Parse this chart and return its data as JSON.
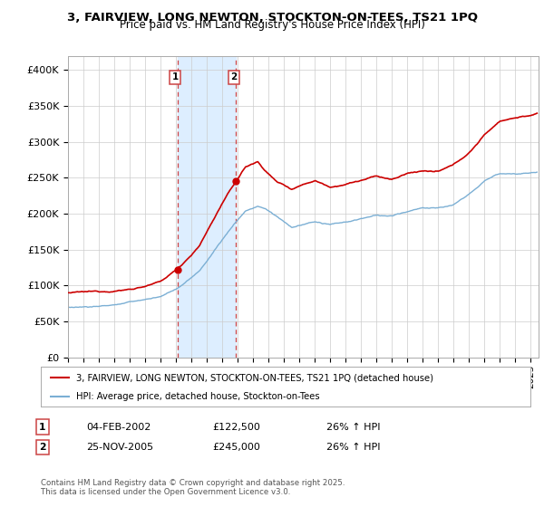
{
  "title_line1": "3, FAIRVIEW, LONG NEWTON, STOCKTON-ON-TEES, TS21 1PQ",
  "title_line2": "Price paid vs. HM Land Registry's House Price Index (HPI)",
  "ylabel_ticks": [
    "£0",
    "£50K",
    "£100K",
    "£150K",
    "£200K",
    "£250K",
    "£300K",
    "£350K",
    "£400K"
  ],
  "ytick_values": [
    0,
    50000,
    100000,
    150000,
    200000,
    250000,
    300000,
    350000,
    400000
  ],
  "ylim": [
    0,
    420000
  ],
  "xlim_start": 1995.0,
  "xlim_end": 2025.5,
  "purchase1_year": 2002.09,
  "purchase1_price": 122500,
  "purchase2_year": 2005.9,
  "purchase2_price": 245000,
  "legend_line1": "3, FAIRVIEW, LONG NEWTON, STOCKTON-ON-TEES, TS21 1PQ (detached house)",
  "legend_line2": "HPI: Average price, detached house, Stockton-on-Tees",
  "table_row1": [
    "1",
    "04-FEB-2002",
    "£122,500",
    "26% ↑ HPI"
  ],
  "table_row2": [
    "2",
    "25-NOV-2005",
    "£245,000",
    "26% ↑ HPI"
  ],
  "footer": "Contains HM Land Registry data © Crown copyright and database right 2025.\nThis data is licensed under the Open Government Licence v3.0.",
  "red_color": "#cc0000",
  "blue_color": "#7bafd4",
  "shade_color": "#ddeeff",
  "grid_color": "#cccccc",
  "bg_color": "#ffffff"
}
